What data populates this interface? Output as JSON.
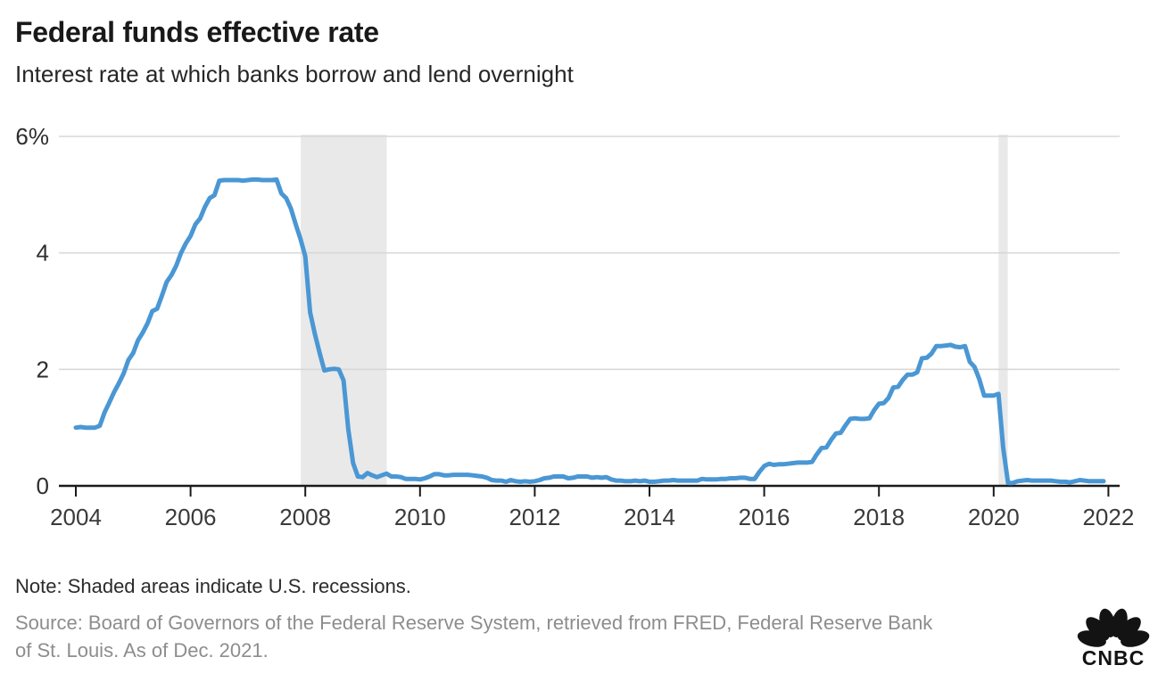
{
  "colors": {
    "line": "#4A97D4",
    "recession_band": "#e9e9e9",
    "gridline": "#d8d8d8",
    "axis": "#1a1a1a",
    "axis_label": "#3a3a3a",
    "y_axis_label": "#2e2e2e",
    "title": "#191919",
    "subtitle": "#262626",
    "note": "#2b2b2b",
    "source": "#8d8d8d",
    "logo": "#131313"
  },
  "footer": {
    "note": "Note: Shaded areas indicate U.S. recessions.",
    "source_line1": "Source: Board of Governors of the Federal Reserve System, retrieved from FRED, Federal Reserve Bank",
    "source_line2": "of St. Louis. As of Dec. 2021.",
    "logo_brand": "CNBC"
  },
  "chart_data": {
    "type": "line",
    "title": "Federal funds effective rate",
    "subtitle": "Interest rate at which banks borrow and lend overnight",
    "unit": "percent",
    "x_domain": [
      2004,
      2022
    ],
    "ylim": [
      0,
      6
    ],
    "grid": "horizontal",
    "legend": "none",
    "x_ticks": [
      2004,
      2006,
      2008,
      2010,
      2012,
      2014,
      2016,
      2018,
      2020,
      2022
    ],
    "y_ticks": [
      {
        "value": 0,
        "label": "0"
      },
      {
        "value": 2,
        "label": "2"
      },
      {
        "value": 4,
        "label": "4"
      },
      {
        "value": 6,
        "label": "6%"
      }
    ],
    "recessions_shaded_year_ranges": [
      [
        2007.92,
        2009.42
      ],
      [
        2020.085,
        2020.245
      ]
    ],
    "series": [
      {
        "name": "Federal funds effective rate",
        "frequency": "monthly",
        "start_year": 2004,
        "end_label": "As of Dec. 2021",
        "values": [
          1.0,
          1.01,
          1.0,
          1.0,
          1.0,
          1.03,
          1.26,
          1.43,
          1.61,
          1.76,
          1.93,
          2.16,
          2.28,
          2.5,
          2.63,
          2.79,
          3.0,
          3.04,
          3.26,
          3.5,
          3.62,
          3.78,
          4.0,
          4.16,
          4.29,
          4.49,
          4.59,
          4.79,
          4.94,
          4.99,
          5.24,
          5.25,
          5.25,
          5.25,
          5.25,
          5.24,
          5.25,
          5.26,
          5.26,
          5.25,
          5.25,
          5.25,
          5.26,
          5.02,
          4.94,
          4.76,
          4.49,
          4.24,
          3.94,
          2.98,
          2.61,
          2.28,
          1.98,
          2.0,
          2.01,
          2.0,
          1.81,
          0.97,
          0.39,
          0.16,
          0.15,
          0.22,
          0.18,
          0.15,
          0.18,
          0.21,
          0.16,
          0.16,
          0.15,
          0.12,
          0.12,
          0.12,
          0.11,
          0.13,
          0.16,
          0.2,
          0.2,
          0.18,
          0.18,
          0.19,
          0.19,
          0.19,
          0.19,
          0.18,
          0.17,
          0.16,
          0.14,
          0.1,
          0.09,
          0.09,
          0.07,
          0.1,
          0.08,
          0.07,
          0.08,
          0.07,
          0.08,
          0.1,
          0.13,
          0.14,
          0.16,
          0.16,
          0.16,
          0.13,
          0.14,
          0.16,
          0.16,
          0.16,
          0.14,
          0.15,
          0.14,
          0.15,
          0.11,
          0.09,
          0.09,
          0.08,
          0.08,
          0.09,
          0.08,
          0.09,
          0.07,
          0.07,
          0.08,
          0.09,
          0.09,
          0.1,
          0.09,
          0.09,
          0.09,
          0.09,
          0.09,
          0.12,
          0.11,
          0.11,
          0.11,
          0.12,
          0.12,
          0.13,
          0.13,
          0.14,
          0.14,
          0.12,
          0.12,
          0.24,
          0.34,
          0.38,
          0.36,
          0.37,
          0.37,
          0.38,
          0.39,
          0.4,
          0.4,
          0.4,
          0.41,
          0.54,
          0.65,
          0.66,
          0.79,
          0.9,
          0.91,
          1.04,
          1.15,
          1.16,
          1.15,
          1.15,
          1.16,
          1.3,
          1.41,
          1.42,
          1.51,
          1.69,
          1.7,
          1.82,
          1.91,
          1.91,
          1.95,
          2.19,
          2.2,
          2.27,
          2.4,
          2.4,
          2.41,
          2.42,
          2.39,
          2.38,
          2.4,
          2.13,
          2.04,
          1.83,
          1.55,
          1.55,
          1.55,
          1.58,
          0.65,
          0.05,
          0.05,
          0.08,
          0.09,
          0.1,
          0.09,
          0.09,
          0.09,
          0.09,
          0.09,
          0.08,
          0.07,
          0.07,
          0.06,
          0.08,
          0.1,
          0.09,
          0.08,
          0.08,
          0.08,
          0.08
        ]
      }
    ]
  }
}
